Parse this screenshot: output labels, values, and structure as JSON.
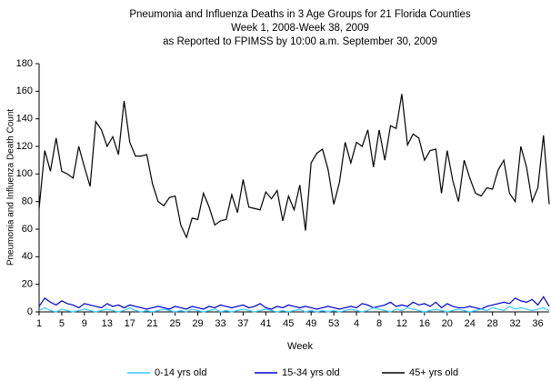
{
  "chart_data": {
    "type": "line",
    "title": "Pneumonia and Influenza Deaths in 3 Age Groups for 21 Florida Counties",
    "subtitle": [
      "Week 1, 2008-Week 38, 2009",
      "as Reported to FPIMSS by 10:00 a.m. September 30, 2009"
    ],
    "x_label": "Week",
    "y_label": "Pneumonia and Influenza Death Count",
    "categories": [
      "1",
      null,
      null,
      null,
      "5",
      null,
      null,
      null,
      "9",
      null,
      null,
      null,
      "13",
      null,
      null,
      null,
      "17",
      null,
      null,
      null,
      "21",
      null,
      null,
      null,
      "25",
      null,
      null,
      null,
      "29",
      null,
      null,
      null,
      "33",
      null,
      null,
      null,
      "37",
      null,
      null,
      null,
      "41",
      null,
      null,
      null,
      "45",
      null,
      null,
      null,
      "49",
      null,
      null,
      null,
      "53",
      null,
      null,
      null,
      "4",
      null,
      null,
      null,
      "8",
      null,
      null,
      null,
      "12",
      null,
      null,
      null,
      "16",
      null,
      null,
      null,
      "20",
      null,
      null,
      null,
      "24",
      null,
      null,
      null,
      "28",
      null,
      null,
      null,
      "32",
      null,
      null,
      null,
      "36",
      null,
      null
    ],
    "series": [
      {
        "name": "0-14 yrs old",
        "color": "#33ccff",
        "values": [
          1,
          3,
          1,
          0,
          2,
          1,
          0,
          1,
          2,
          1,
          0,
          1,
          2,
          1,
          0,
          1,
          3,
          1,
          0,
          1,
          0,
          1,
          2,
          1,
          0,
          1,
          0,
          2,
          1,
          0,
          1,
          2,
          0,
          1,
          0,
          1,
          2,
          1,
          0,
          1,
          2,
          1,
          0,
          1,
          0,
          1,
          2,
          0,
          1,
          0,
          1,
          0,
          1,
          0,
          1,
          2,
          1,
          0,
          1,
          3,
          2,
          1,
          0,
          2,
          1,
          3,
          2,
          1,
          0,
          1,
          2,
          1,
          0,
          1,
          2,
          1,
          0,
          1,
          2,
          1,
          3,
          2,
          1,
          4,
          2,
          3,
          2,
          1,
          2,
          3,
          1
        ]
      },
      {
        "name": "15-34 yrs old",
        "color": "#0000cc",
        "values": [
          4,
          10,
          7,
          5,
          8,
          6,
          5,
          3,
          6,
          5,
          4,
          3,
          6,
          4,
          5,
          3,
          5,
          4,
          3,
          2,
          3,
          4,
          3,
          2,
          4,
          3,
          2,
          4,
          3,
          2,
          4,
          3,
          5,
          4,
          3,
          4,
          5,
          3,
          4,
          6,
          3,
          2,
          4,
          3,
          5,
          4,
          3,
          4,
          3,
          2,
          3,
          4,
          3,
          2,
          3,
          4,
          3,
          6,
          5,
          3,
          4,
          5,
          7,
          4,
          5,
          4,
          7,
          5,
          6,
          4,
          7,
          3,
          6,
          4,
          3,
          3,
          4,
          3,
          2,
          4,
          5,
          6,
          7,
          6,
          10,
          8,
          7,
          9,
          5,
          11,
          4
        ]
      },
      {
        "name": "45+ yrs old",
        "color": "#000000",
        "values": [
          75,
          117,
          102,
          126,
          102,
          100,
          97,
          120,
          105,
          91,
          138,
          132,
          120,
          127,
          114,
          153,
          123,
          113,
          113,
          114,
          93,
          80,
          77,
          83,
          84,
          63,
          54,
          68,
          67,
          86,
          76,
          63,
          66,
          67,
          85,
          72,
          96,
          76,
          75,
          74,
          87,
          82,
          88,
          66,
          84,
          74,
          92,
          59,
          108,
          115,
          118,
          103,
          78,
          94,
          123,
          108,
          123,
          120,
          132,
          105,
          132,
          110,
          135,
          133,
          158,
          121,
          129,
          126,
          110,
          117,
          118,
          86,
          117,
          95,
          80,
          110,
          97,
          86,
          84,
          90,
          89,
          103,
          110,
          86,
          80,
          120,
          105,
          80,
          90,
          128,
          78
        ]
      }
    ],
    "ylim": [
      0,
      180
    ],
    "yticks": [
      0,
      20,
      40,
      60,
      80,
      100,
      120,
      140,
      160,
      180
    ],
    "grid": false
  }
}
